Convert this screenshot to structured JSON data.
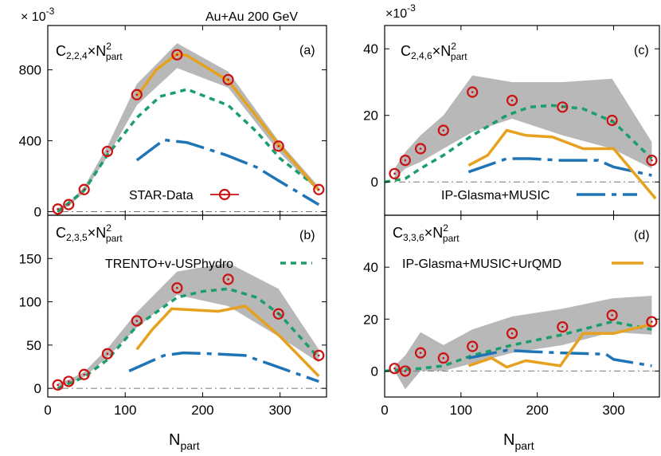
{
  "figure": {
    "x_axis_label_main": "N",
    "x_axis_label_sub": "part",
    "x_ticks": [
      "0",
      "100",
      "200",
      "300"
    ],
    "energy_label": "Au+Au 200 GeV"
  },
  "colors": {
    "star": "#cc1111",
    "trento": "#1a9e6a",
    "ipglasma": "#1f74b5",
    "urqmd": "#e6a11f",
    "band": "#b8b8b8"
  },
  "legend": {
    "star": "STAR-Data",
    "ipglasma": "IP-Glasma+MUSIC",
    "trento": "TRENTO+v-USPhydro",
    "urqmd": "IP-Glasma+MUSIC+UrQMD"
  },
  "chart_data": [
    {
      "panel": "(a)",
      "type": "line",
      "label_main": "C",
      "label_sub": "2,2,4",
      "label_suffix": "×N",
      "label_sup": "2",
      "label_sub2": "part",
      "scale_base": "× 10",
      "scale_exp": "-3",
      "xlim": [
        0,
        360
      ],
      "ylim": [
        -20,
        1050
      ],
      "yticks": [
        0,
        400,
        800
      ],
      "star": {
        "x": [
          13,
          27,
          47,
          77,
          115,
          167,
          233,
          298,
          350
        ],
        "y": [
          15,
          40,
          125,
          340,
          660,
          885,
          745,
          370,
          125
        ]
      },
      "band": {
        "x": [
          13,
          27,
          47,
          77,
          115,
          167,
          233,
          298,
          350
        ],
        "low": [
          10,
          30,
          110,
          310,
          600,
          810,
          700,
          340,
          110
        ],
        "high": [
          20,
          50,
          140,
          370,
          720,
          950,
          790,
          400,
          140
        ]
      },
      "trento": {
        "x": [
          13,
          47,
          77,
          115,
          145,
          180,
          233,
          270,
          300,
          350
        ],
        "y": [
          0,
          120,
          320,
          530,
          650,
          690,
          600,
          450,
          300,
          130
        ]
      },
      "ipglasma": {
        "x": [
          115,
          150,
          180,
          230,
          270,
          300,
          350
        ],
        "y": [
          290,
          405,
          390,
          320,
          250,
          170,
          40
        ]
      },
      "urqmd": {
        "x": [
          115,
          140,
          167,
          180,
          233,
          298,
          350
        ],
        "y": [
          650,
          800,
          890,
          880,
          740,
          380,
          120
        ]
      }
    },
    {
      "panel": "(b)",
      "type": "line",
      "label_main": "C",
      "label_sub": "2,3,5",
      "label_suffix": "×N",
      "label_sup": "2",
      "label_sub2": "part",
      "xlim": [
        0,
        360
      ],
      "ylim": [
        -10,
        200
      ],
      "yticks": [
        0,
        50,
        100,
        150
      ],
      "star": {
        "x": [
          13,
          27,
          47,
          77,
          115,
          167,
          233,
          298,
          350
        ],
        "y": [
          4,
          8,
          16,
          40,
          78,
          116,
          126,
          86,
          38
        ]
      },
      "band": {
        "x": [
          13,
          27,
          47,
          77,
          115,
          167,
          233,
          298,
          350
        ],
        "low": [
          2,
          6,
          13,
          36,
          70,
          108,
          95,
          60,
          30
        ],
        "high": [
          6,
          10,
          19,
          46,
          88,
          135,
          145,
          115,
          45
        ]
      },
      "trento": {
        "x": [
          13,
          47,
          77,
          115,
          167,
          200,
          233,
          270,
          300,
          350
        ],
        "y": [
          0,
          13,
          33,
          72,
          105,
          112,
          115,
          105,
          85,
          35
        ]
      },
      "ipglasma": {
        "x": [
          105,
          150,
          175,
          210,
          255,
          290,
          350
        ],
        "y": [
          20,
          38,
          41,
          40,
          38,
          27,
          8
        ]
      },
      "urqmd": {
        "x": [
          115,
          135,
          160,
          220,
          255,
          300,
          350
        ],
        "y": [
          45,
          68,
          92,
          89,
          95,
          60,
          14
        ]
      }
    },
    {
      "panel": "(c)",
      "type": "line",
      "label_main": "C",
      "label_sub": "2,4,6",
      "label_suffix": "×N",
      "label_sup": "2",
      "label_sub2": "part",
      "scale_base": "×10",
      "scale_exp": "-3",
      "xlim": [
        0,
        360
      ],
      "ylim": [
        -10,
        47
      ],
      "yticks": [
        0,
        20,
        40
      ],
      "star": {
        "x": [
          13,
          27,
          47,
          77,
          115,
          167,
          233,
          298,
          350
        ],
        "y": [
          2.5,
          6.5,
          10,
          15.5,
          27,
          24.5,
          22.5,
          18.5,
          6.5
        ]
      },
      "band": {
        "x": [
          13,
          27,
          47,
          77,
          115,
          167,
          233,
          298,
          350
        ],
        "low": [
          1,
          4,
          6,
          10,
          15,
          19,
          14,
          10,
          4
        ],
        "high": [
          4,
          9,
          14,
          20,
          32,
          30,
          30,
          31,
          12
        ]
      },
      "trento": {
        "x": [
          0,
          27,
          47,
          77,
          115,
          160,
          190,
          220,
          260,
          300,
          350
        ],
        "y": [
          0,
          1,
          4,
          8,
          14,
          20,
          22.5,
          23,
          22,
          18,
          7
        ]
      },
      "ipglasma": {
        "x": [
          110,
          160,
          190,
          230,
          280,
          300,
          350
        ],
        "y": [
          3,
          7,
          7,
          6.5,
          6.5,
          4.5,
          2
        ]
      },
      "urqmd": {
        "x": [
          110,
          135,
          160,
          185,
          220,
          260,
          300,
          355
        ],
        "y": [
          5,
          8,
          15.5,
          14,
          13.5,
          10,
          10,
          -5
        ]
      }
    },
    {
      "panel": "(d)",
      "type": "line",
      "label_main": "C",
      "label_sub": "3,3,6",
      "label_suffix": "×N",
      "label_sup": "2",
      "label_sub2": "part",
      "xlim": [
        0,
        360
      ],
      "ylim": [
        -10,
        60
      ],
      "yticks": [
        0,
        20,
        40
      ],
      "star": {
        "x": [
          13,
          27,
          47,
          77,
          115,
          167,
          233,
          298,
          350
        ],
        "y": [
          1,
          0,
          7,
          5,
          9.5,
          14.5,
          17,
          21.5,
          19
        ]
      },
      "band": {
        "x": [
          13,
          27,
          47,
          77,
          115,
          167,
          233,
          298,
          350
        ],
        "low": [
          0,
          -7,
          0,
          0,
          3,
          7,
          10,
          15,
          14
        ],
        "high": [
          2,
          6,
          15,
          10,
          16,
          21,
          24,
          28,
          29
        ]
      },
      "trento": {
        "x": [
          0,
          47,
          77,
          115,
          167,
          233,
          298,
          350
        ],
        "y": [
          0,
          1,
          2,
          6,
          10,
          14,
          19,
          16
        ]
      },
      "ipglasma": {
        "x": [
          110,
          160,
          190,
          230,
          290,
          300,
          350
        ],
        "y": [
          5,
          8,
          7.5,
          7,
          6.5,
          4.5,
          2
        ]
      },
      "urqmd": {
        "x": [
          110,
          140,
          160,
          185,
          230,
          260,
          300,
          350
        ],
        "y": [
          2,
          5,
          1.5,
          4,
          2,
          14.5,
          14.5,
          18
        ]
      }
    }
  ]
}
